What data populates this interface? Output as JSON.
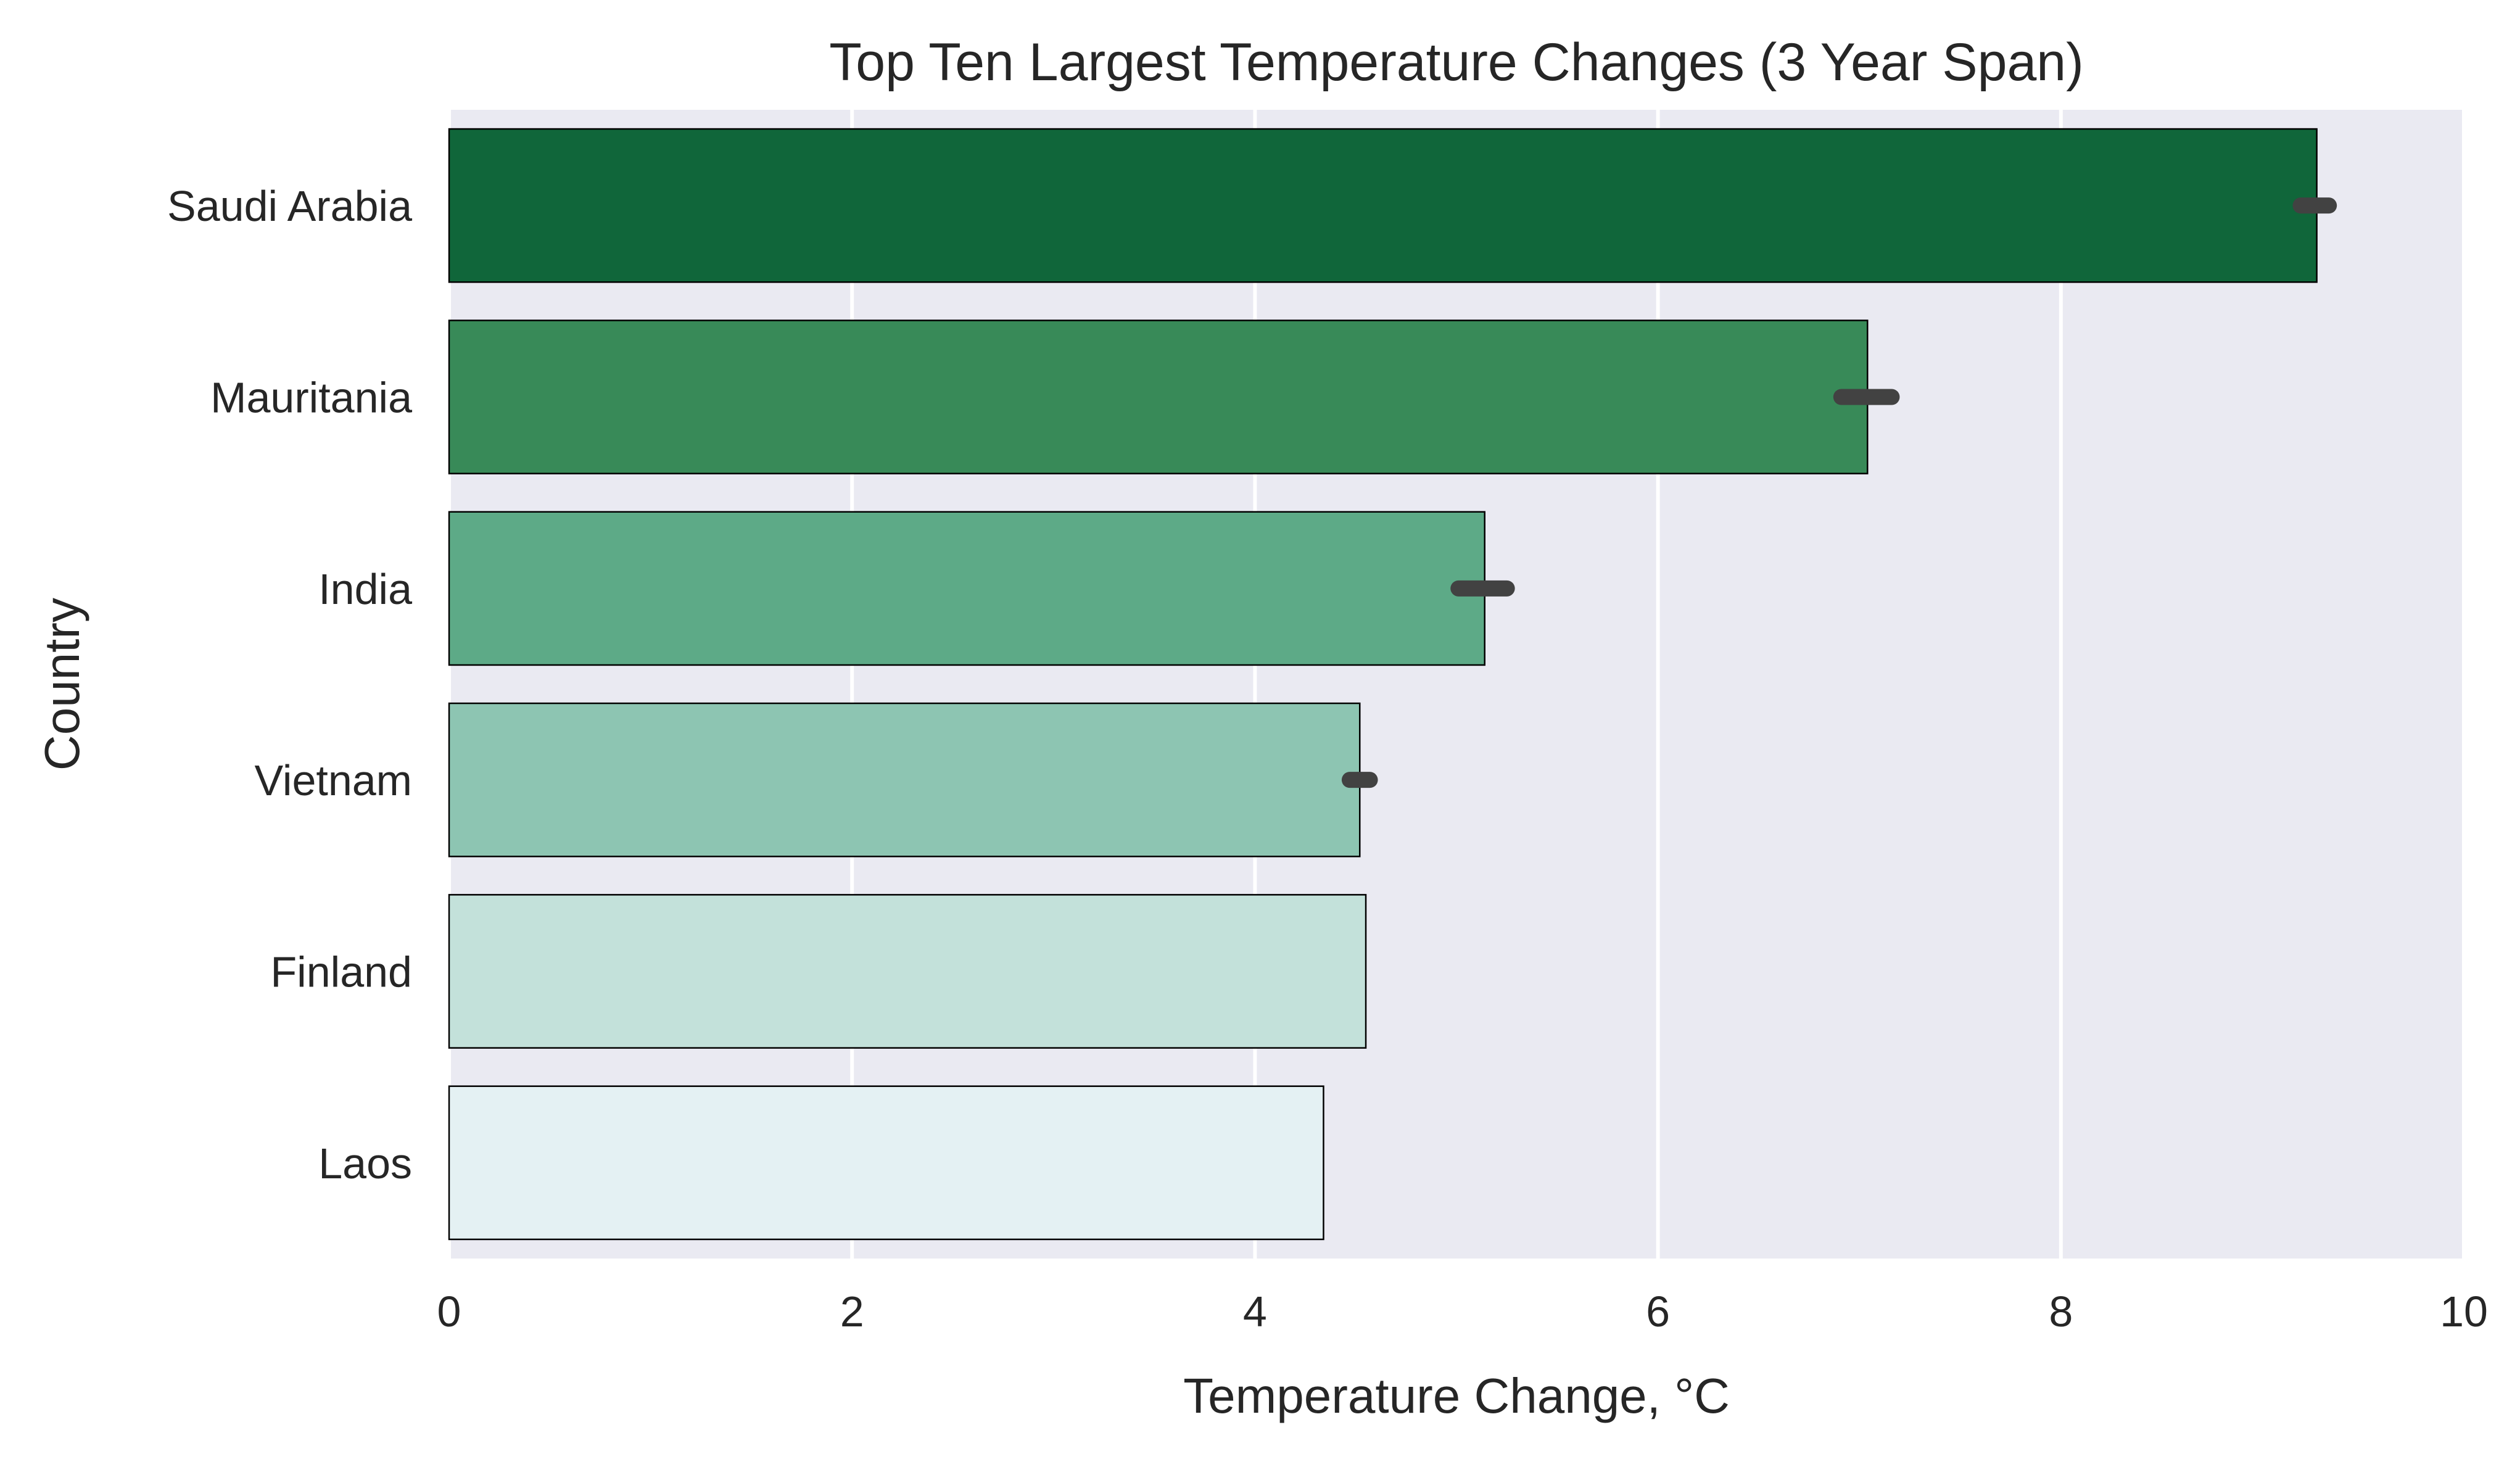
{
  "chart_data": {
    "type": "bar",
    "orientation": "horizontal",
    "title": "Top Ten Largest Temperature Changes (3 Year Span)",
    "xlabel": "Temperature Change, °C",
    "ylabel": "Country",
    "xlim": [
      0,
      10
    ],
    "xticks": [
      0,
      2,
      4,
      6,
      8,
      10
    ],
    "grid": true,
    "categories": [
      "Saudi Arabia",
      "Mauritania",
      "India",
      "Vietnam",
      "Finland",
      "Laos"
    ],
    "values": [
      9.27,
      7.04,
      5.14,
      4.52,
      4.55,
      4.34
    ],
    "error_intervals": [
      [
        9.19,
        9.33
      ],
      [
        6.91,
        7.16
      ],
      [
        5.01,
        5.25
      ],
      [
        4.47,
        4.57
      ],
      null,
      null
    ],
    "colors": [
      "#10663A",
      "#388A58",
      "#5DAA87",
      "#8DC5B2",
      "#C3E1DA",
      "#E4F1F3"
    ],
    "background_color": "#EAEAF2",
    "grid_color": "#FFFFFF"
  }
}
